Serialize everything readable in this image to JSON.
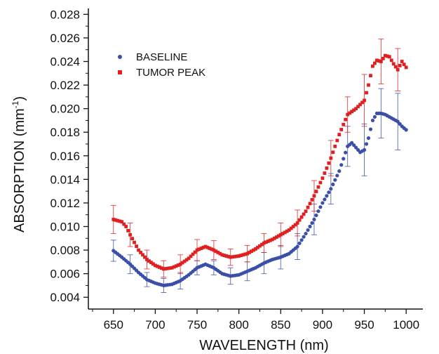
{
  "chart_data": {
    "type": "scatter",
    "xlabel": "WAVELENGTH (nm)",
    "ylabel_main": "ABSORPTION (mm",
    "ylabel_sup": "-1",
    "ylabel_end": ")",
    "xlim": [
      620,
      1020
    ],
    "ylim": [
      0.003,
      0.0285
    ],
    "x_ticks": [
      650,
      700,
      750,
      800,
      850,
      900,
      950,
      1000
    ],
    "y_ticks": [
      0.004,
      0.006,
      0.008,
      0.01,
      0.012,
      0.014,
      0.016,
      0.018,
      0.02,
      0.022,
      0.024,
      0.026,
      0.028
    ],
    "y_tick_labels": [
      "0.004",
      "0.006",
      "0.008",
      "0.010",
      "0.012",
      "0.014",
      "0.016",
      "0.018",
      "0.020",
      "0.022",
      "0.024",
      "0.026",
      "0.028"
    ],
    "x_tick_labels": [
      "650",
      "700",
      "750",
      "800",
      "850",
      "900",
      "950",
      "1000"
    ],
    "legend_placement": "top-left",
    "grid": false,
    "series": [
      {
        "name": "BASELINE",
        "color": "#3a4fa8",
        "marker": "circle",
        "points": [
          [
            650,
            0.00795
          ],
          [
            660,
            0.0074
          ],
          [
            670,
            0.0068
          ],
          [
            680,
            0.0061
          ],
          [
            690,
            0.0055
          ],
          [
            700,
            0.0052
          ],
          [
            710,
            0.005
          ],
          [
            720,
            0.0051
          ],
          [
            730,
            0.0054
          ],
          [
            740,
            0.0059
          ],
          [
            750,
            0.0065
          ],
          [
            760,
            0.0068
          ],
          [
            770,
            0.0065
          ],
          [
            780,
            0.006
          ],
          [
            790,
            0.0058
          ],
          [
            800,
            0.0059
          ],
          [
            810,
            0.0062
          ],
          [
            820,
            0.0065
          ],
          [
            830,
            0.0069
          ],
          [
            840,
            0.0072
          ],
          [
            850,
            0.0074
          ],
          [
            860,
            0.0077
          ],
          [
            870,
            0.0083
          ],
          [
            880,
            0.0094
          ],
          [
            890,
            0.0106
          ],
          [
            900,
            0.012
          ],
          [
            910,
            0.0132
          ],
          [
            920,
            0.0147
          ],
          [
            930,
            0.0168
          ],
          [
            935,
            0.0171
          ],
          [
            940,
            0.0167
          ],
          [
            945,
            0.0163
          ],
          [
            950,
            0.0165
          ],
          [
            955,
            0.0175
          ],
          [
            960,
            0.019
          ],
          [
            965,
            0.0196
          ],
          [
            970,
            0.0196
          ],
          [
            975,
            0.0195
          ],
          [
            980,
            0.0193
          ],
          [
            985,
            0.0191
          ],
          [
            990,
            0.0189
          ],
          [
            995,
            0.0185
          ],
          [
            1000,
            0.0182
          ]
        ],
        "error_bars": [
          [
            650,
            0.0009
          ],
          [
            670,
            0.0008
          ],
          [
            690,
            0.0006
          ],
          [
            710,
            0.0006
          ],
          [
            730,
            0.0007
          ],
          [
            750,
            0.0006
          ],
          [
            770,
            0.0006
          ],
          [
            790,
            0.0007
          ],
          [
            810,
            0.0008
          ],
          [
            830,
            0.0009
          ],
          [
            850,
            0.001
          ],
          [
            870,
            0.0011
          ],
          [
            890,
            0.0013
          ],
          [
            910,
            0.0013
          ],
          [
            930,
            0.0017
          ],
          [
            950,
            0.0022
          ],
          [
            970,
            0.0021
          ],
          [
            990,
            0.0024
          ]
        ]
      },
      {
        "name": "TUMOR PEAK",
        "color": "#e02020",
        "marker": "square",
        "points": [
          [
            650,
            0.0106
          ],
          [
            655,
            0.0105
          ],
          [
            660,
            0.0104
          ],
          [
            665,
            0.01
          ],
          [
            670,
            0.0093
          ],
          [
            680,
            0.008
          ],
          [
            690,
            0.0072
          ],
          [
            700,
            0.0067
          ],
          [
            710,
            0.0064
          ],
          [
            720,
            0.0065
          ],
          [
            730,
            0.0068
          ],
          [
            740,
            0.0073
          ],
          [
            750,
            0.008
          ],
          [
            760,
            0.0083
          ],
          [
            770,
            0.008
          ],
          [
            780,
            0.0076
          ],
          [
            790,
            0.0074
          ],
          [
            800,
            0.0075
          ],
          [
            810,
            0.0077
          ],
          [
            820,
            0.0081
          ],
          [
            830,
            0.0086
          ],
          [
            840,
            0.0089
          ],
          [
            850,
            0.0093
          ],
          [
            860,
            0.0097
          ],
          [
            870,
            0.0103
          ],
          [
            880,
            0.0113
          ],
          [
            890,
            0.0126
          ],
          [
            900,
            0.0141
          ],
          [
            910,
            0.0158
          ],
          [
            920,
            0.0178
          ],
          [
            930,
            0.0195
          ],
          [
            940,
            0.02
          ],
          [
            950,
            0.0207
          ],
          [
            955,
            0.022
          ],
          [
            960,
            0.0236
          ],
          [
            965,
            0.0241
          ],
          [
            970,
            0.024
          ],
          [
            975,
            0.0245
          ],
          [
            980,
            0.0244
          ],
          [
            985,
            0.0238
          ],
          [
            990,
            0.0233
          ],
          [
            995,
            0.024
          ],
          [
            1000,
            0.0235
          ]
        ],
        "error_bars": [
          [
            650,
            0.0012
          ],
          [
            670,
            0.001
          ],
          [
            690,
            0.0008
          ],
          [
            710,
            0.0007
          ],
          [
            730,
            0.0008
          ],
          [
            750,
            0.0009
          ],
          [
            770,
            0.0008
          ],
          [
            790,
            0.0007
          ],
          [
            810,
            0.0007
          ],
          [
            830,
            0.0008
          ],
          [
            850,
            0.001
          ],
          [
            870,
            0.0011
          ],
          [
            890,
            0.0013
          ],
          [
            910,
            0.0015
          ],
          [
            930,
            0.0015
          ],
          [
            950,
            0.0022
          ],
          [
            970,
            0.0019
          ],
          [
            990,
            0.0018
          ]
        ]
      }
    ]
  }
}
